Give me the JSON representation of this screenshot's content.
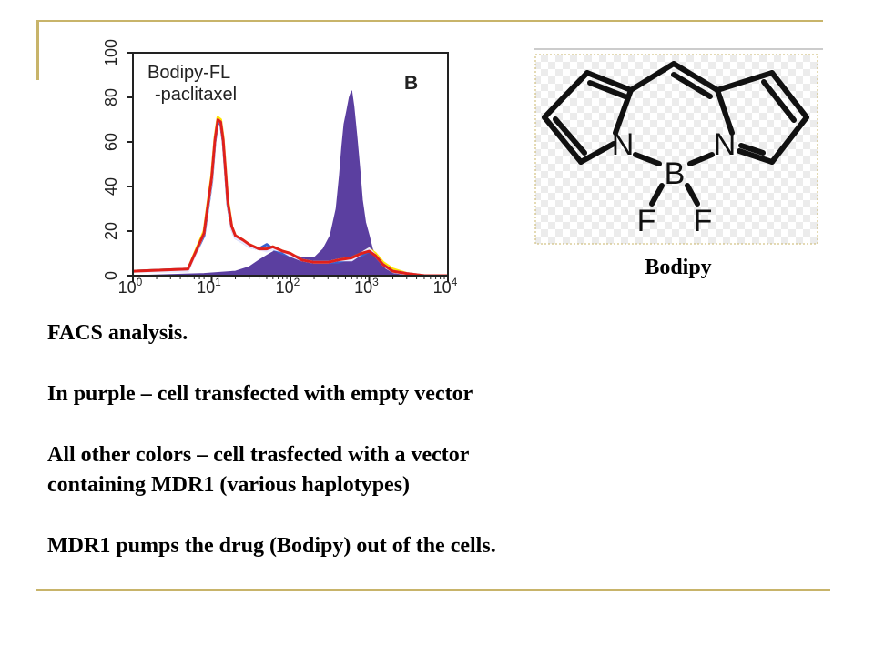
{
  "chart_data": {
    "type": "area",
    "panel_label": "B",
    "annotation": [
      "Bodipy-FL",
      "-paclitaxel"
    ],
    "x_scale": "log",
    "xlim": [
      1,
      10000
    ],
    "ylim": [
      0,
      100
    ],
    "x_tick_bases": [
      "10",
      "10",
      "10",
      "10",
      "10"
    ],
    "x_tick_exponents": [
      "0",
      "1",
      "2",
      "3",
      "4"
    ],
    "x_ticks": [
      1,
      10,
      100,
      1000,
      10000
    ],
    "y_ticks": [
      "0",
      "20",
      "40",
      "60",
      "80",
      "100"
    ],
    "series": [
      {
        "color": "#5b3fa0",
        "fill": true,
        "x": [
          1,
          8,
          20,
          30,
          40,
          55,
          70,
          85,
          100,
          140,
          200,
          260,
          320,
          380,
          420,
          450,
          480,
          520,
          560,
          600,
          640,
          700,
          760,
          820,
          900,
          1000,
          1100,
          1300,
          1600,
          2000,
          3000,
          5000,
          10000
        ],
        "y": [
          0,
          1,
          2,
          4,
          7,
          10,
          12,
          11,
          10,
          8,
          8,
          12,
          18,
          30,
          45,
          58,
          68,
          74,
          80,
          83,
          76,
          62,
          48,
          34,
          24,
          18,
          12,
          7,
          3,
          1,
          0,
          0,
          0
        ]
      },
      {
        "color": "#ffe600",
        "x": [
          1,
          5,
          8,
          10,
          11,
          12,
          13,
          14,
          15,
          16,
          18,
          20,
          25,
          30,
          40,
          50,
          60,
          80,
          100,
          140,
          200,
          300,
          400,
          600,
          800,
          1000,
          1200,
          1500,
          2000,
          3000,
          5000,
          10000
        ],
        "y": [
          2,
          3,
          20,
          45,
          62,
          71,
          70,
          62,
          48,
          34,
          22,
          18,
          16,
          14,
          12,
          12,
          13,
          11,
          10,
          7,
          6,
          6,
          7,
          8,
          10,
          12,
          10,
          6,
          3,
          1,
          0,
          0
        ]
      },
      {
        "color": "#3a5fcd",
        "x": [
          1,
          5,
          8,
          10,
          11,
          12,
          13,
          14,
          15,
          16,
          18,
          20,
          25,
          30,
          40,
          50,
          60,
          80,
          100,
          140,
          200,
          300,
          400,
          600,
          800,
          1000,
          1200,
          1500,
          2000,
          3000,
          5000,
          10000
        ],
        "y": [
          2,
          3,
          18,
          42,
          60,
          69,
          68,
          60,
          46,
          32,
          21,
          17,
          15,
          13,
          12,
          14,
          12,
          10,
          9,
          7,
          6,
          6,
          6,
          8,
          9,
          11,
          9,
          5,
          2,
          1,
          0,
          0
        ]
      },
      {
        "color": "#e8e8ff",
        "x": [
          1,
          5,
          8,
          10,
          11,
          12,
          13,
          14,
          15,
          16,
          18,
          20,
          25,
          30,
          40,
          50,
          60,
          80,
          100,
          140,
          200,
          300,
          400,
          600,
          800,
          1000,
          1200,
          1500,
          2000,
          3000,
          5000,
          10000
        ],
        "y": [
          2,
          2,
          19,
          43,
          61,
          70,
          69,
          61,
          47,
          33,
          21,
          17,
          15,
          13,
          12,
          11,
          12,
          11,
          9,
          7,
          6,
          6,
          7,
          7,
          10,
          12,
          9,
          5,
          2,
          1,
          0,
          0
        ]
      },
      {
        "color": "#e0201c",
        "x": [
          1,
          5,
          8,
          10,
          11,
          12,
          13,
          14,
          15,
          16,
          18,
          20,
          25,
          30,
          40,
          50,
          60,
          80,
          100,
          140,
          200,
          300,
          400,
          600,
          800,
          1000,
          1200,
          1500,
          2000,
          3000,
          5000,
          10000
        ],
        "y": [
          2,
          3,
          19,
          44,
          61,
          70,
          69,
          61,
          47,
          33,
          22,
          18,
          16,
          14,
          12,
          12,
          13,
          11,
          10,
          7,
          6,
          6,
          7,
          8,
          10,
          11,
          9,
          5,
          2,
          1,
          0,
          0
        ]
      }
    ]
  },
  "structure": {
    "atom_labels": [
      "N",
      "N",
      "B",
      "F",
      "F"
    ],
    "caption": "Bodipy"
  },
  "text": {
    "line1": "FACS analysis.",
    "line2": "In purple – cell transfected with empty vector",
    "line3": "All other colors – cell trasfected with a vector",
    "line4": "containing MDR1 (various haplotypes)",
    "line5": "MDR1 pumps the drug (Bodipy) out of the cells."
  }
}
